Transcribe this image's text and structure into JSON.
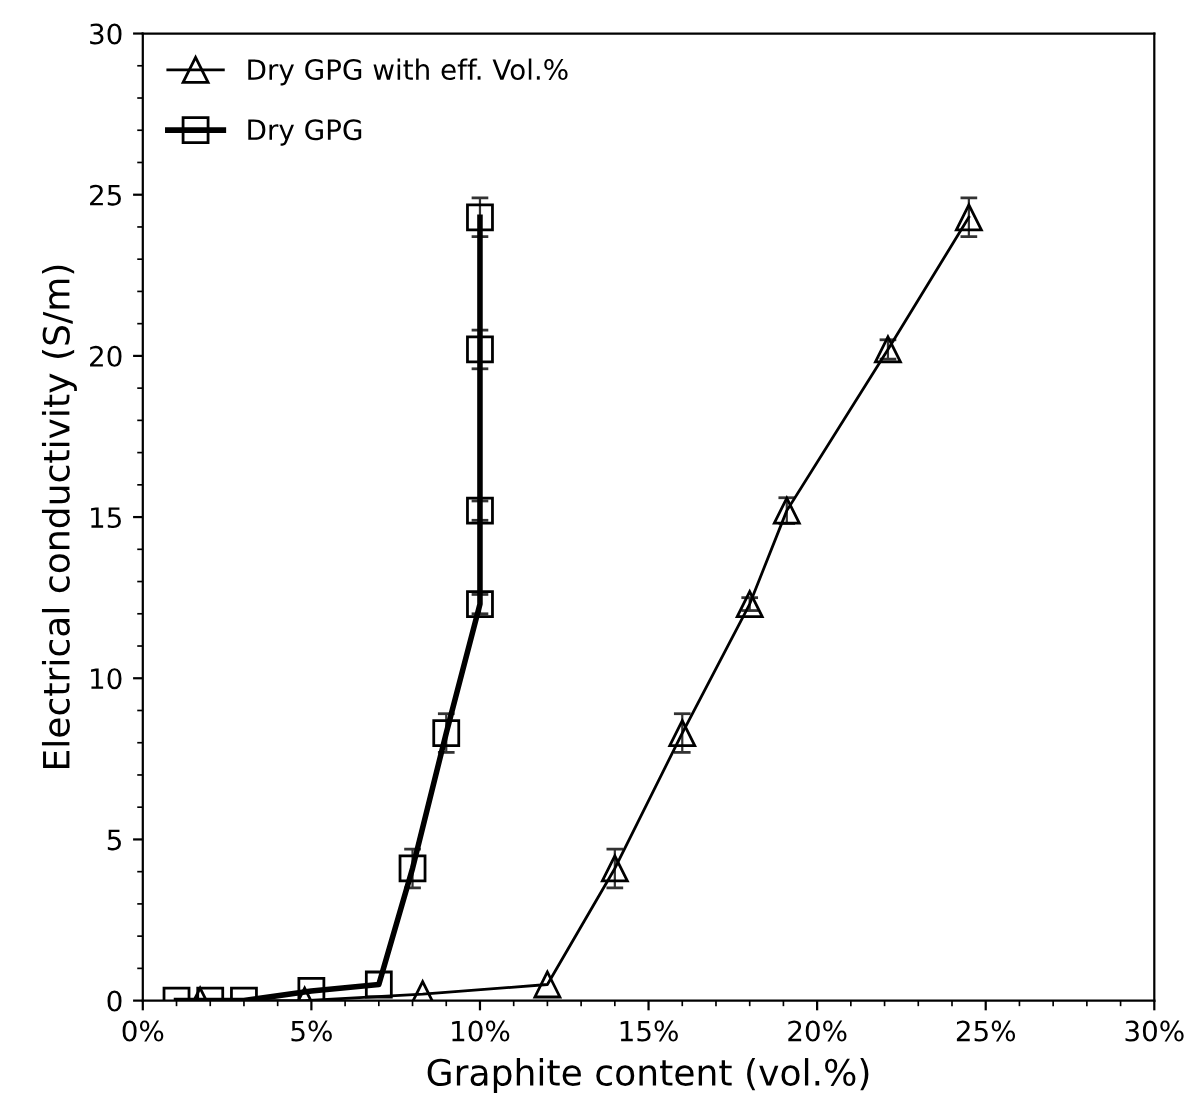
{
  "chart_data": {
    "type": "line",
    "xlabel": "Graphite content (vol.%)",
    "ylabel": "Electrical conductivity (S/m)",
    "xlim": [
      0,
      30
    ],
    "ylim": [
      0,
      30
    ],
    "xticks": [
      {
        "value": 0,
        "label": "0%"
      },
      {
        "value": 5,
        "label": "5%"
      },
      {
        "value": 10,
        "label": "10%"
      },
      {
        "value": 15,
        "label": "15%"
      },
      {
        "value": 20,
        "label": "20%"
      },
      {
        "value": 25,
        "label": "25%"
      },
      {
        "value": 30,
        "label": "30%"
      }
    ],
    "yticks": [
      0,
      5,
      10,
      15,
      20,
      25,
      30
    ],
    "grid": false,
    "legend": "top left",
    "series": [
      {
        "name": "Dry GPG with eff. Vol.%",
        "color": "#000000",
        "marker": "triangle",
        "x": [
          1.7,
          4.8,
          8.3,
          12,
          14,
          16,
          18,
          19.1,
          22.1,
          24.5
        ],
        "values": [
          0,
          0,
          0.2,
          0.5,
          4.1,
          8.3,
          12.3,
          15.2,
          20.2,
          24.3
        ],
        "errors": [
          null,
          null,
          null,
          null,
          0.6,
          0.6,
          0.2,
          0.4,
          0.3,
          0.6
        ]
      },
      {
        "name": "Dry GPG",
        "color": "#000000",
        "marker": "square",
        "x": [
          1,
          2,
          3,
          5,
          7,
          8,
          9,
          10,
          10,
          10,
          10
        ],
        "values": [
          0,
          0,
          0,
          0.3,
          0.5,
          4.1,
          8.3,
          12.3,
          15.2,
          20.2,
          24.3
        ],
        "errors": [
          null,
          null,
          null,
          null,
          null,
          0.6,
          0.6,
          0.3,
          0.3,
          0.6,
          0.6
        ]
      }
    ]
  }
}
